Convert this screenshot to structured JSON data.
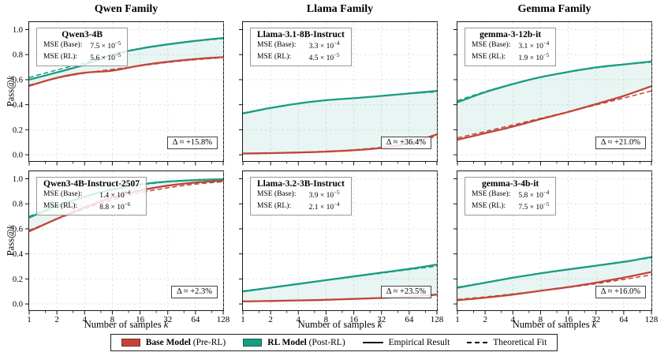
{
  "colors": {
    "base": "#c0453a",
    "rl": "#199c82",
    "fill": "rgba(25,156,131,0.10)",
    "grid": "#d8e4e0"
  },
  "chart_data": {
    "type": "line",
    "xscale": "log2",
    "x": [
      1,
      2,
      4,
      8,
      16,
      32,
      64,
      128
    ],
    "minor_xticks": [
      1.5,
      3,
      6,
      12,
      24,
      48,
      96
    ],
    "xtick_labels": [
      "1",
      "2",
      "4",
      "8",
      "16",
      "32",
      "64",
      "128"
    ],
    "ytick_labels": [
      "0.0",
      "0.2",
      "0.4",
      "0.6",
      "0.8",
      "1.0"
    ],
    "ylim": [
      -0.05,
      1.06
    ],
    "xlabel_main": "Number of samples ",
    "xlabel_var": "k",
    "ylabel_main": "Pass@",
    "ylabel_var": "k",
    "column_titles": [
      "Qwen Family",
      "Llama Family",
      "Gemma Family"
    ],
    "panels": [
      {
        "family": "Qwen Family",
        "model": "Qwen3-4B",
        "mse_base_label": "MSE (Base):",
        "mse_base_mant": "7.5 × 10",
        "mse_base_exp": "−5",
        "mse_rl_label": "MSE (RL):",
        "mse_rl_mant": "5.6 × 10",
        "mse_rl_exp": "−5",
        "delta": "Δ ≈ +15.8%",
        "series": {
          "base_empirical": [
            0.55,
            0.615,
            0.655,
            0.672,
            0.713,
            0.743,
            0.765,
            0.78
          ],
          "base_theoretical": [
            0.556,
            0.612,
            0.652,
            0.682,
            0.71,
            0.738,
            0.76,
            0.776
          ],
          "rl_empirical": [
            0.6,
            0.658,
            0.72,
            0.8,
            0.848,
            0.882,
            0.91,
            0.933
          ],
          "rl_theoretical": [
            0.618,
            0.678,
            0.735,
            0.798,
            0.845,
            0.88,
            0.908,
            0.928
          ]
        }
      },
      {
        "family": "Llama Family",
        "model": "Llama-3.1-8B-Instruct",
        "mse_base_label": "MSE (Base):",
        "mse_base_mant": "3.3 × 10",
        "mse_base_exp": "−4",
        "mse_rl_label": "MSE (RL):",
        "mse_rl_mant": "4.5 × 10",
        "mse_rl_exp": "−5",
        "delta": "Δ ≈ +36.4%",
        "series": {
          "base_empirical": [
            0.01,
            0.013,
            0.018,
            0.025,
            0.036,
            0.055,
            0.092,
            0.163
          ],
          "base_theoretical": [
            0.01,
            0.014,
            0.02,
            0.028,
            0.04,
            0.06,
            0.095,
            0.148
          ],
          "rl_empirical": [
            0.33,
            0.374,
            0.41,
            0.436,
            0.452,
            0.47,
            0.49,
            0.51
          ],
          "rl_theoretical": [
            0.334,
            0.376,
            0.41,
            0.434,
            0.452,
            0.47,
            0.488,
            0.503
          ]
        }
      },
      {
        "family": "Gemma Family",
        "model": "gemma-3-12b-it",
        "mse_base_label": "MSE (Base):",
        "mse_base_mant": "3.1 × 10",
        "mse_base_exp": "−4",
        "mse_rl_label": "MSE (RL):",
        "mse_rl_mant": "1.9 × 10",
        "mse_rl_exp": "−5",
        "delta": "Δ ≈ +21.0%",
        "series": {
          "base_empirical": [
            0.12,
            0.172,
            0.225,
            0.285,
            0.342,
            0.405,
            0.47,
            0.548
          ],
          "base_theoretical": [
            0.135,
            0.186,
            0.238,
            0.291,
            0.344,
            0.398,
            0.453,
            0.51
          ],
          "rl_empirical": [
            0.42,
            0.5,
            0.565,
            0.62,
            0.662,
            0.698,
            0.722,
            0.745
          ],
          "rl_theoretical": [
            0.432,
            0.505,
            0.567,
            0.619,
            0.66,
            0.694,
            0.72,
            0.74
          ]
        }
      },
      {
        "family": "Qwen Family",
        "model": "Qwen3-4B-Instruct-2507",
        "mse_base_label": "MSE (Base):",
        "mse_base_mant": "1.4 × 10",
        "mse_base_exp": "−4",
        "mse_rl_label": "MSE (RL):",
        "mse_rl_mant": "8.8 × 10",
        "mse_rl_exp": "−6",
        "delta": "Δ ≈ +2.3%",
        "series": {
          "base_empirical": [
            0.58,
            0.68,
            0.772,
            0.85,
            0.906,
            0.945,
            0.97,
            0.985
          ],
          "base_theoretical": [
            0.588,
            0.678,
            0.76,
            0.832,
            0.888,
            0.928,
            0.957,
            0.977
          ],
          "rl_empirical": [
            0.69,
            0.782,
            0.856,
            0.915,
            0.955,
            0.978,
            0.99,
            0.997
          ],
          "rl_theoretical": [
            0.7,
            0.786,
            0.857,
            0.912,
            0.95,
            0.975,
            0.988,
            0.995
          ]
        }
      },
      {
        "family": "Llama Family",
        "model": "Llama-3.2-3B-Instruct",
        "mse_base_label": "MSE (Base):",
        "mse_base_mant": "3.9 × 10",
        "mse_base_exp": "−5",
        "mse_rl_label": "MSE (RL):",
        "mse_rl_mant": "2.1 × 10",
        "mse_rl_exp": "−4",
        "delta": "Δ ≈ +23.5%",
        "series": {
          "base_empirical": [
            0.02,
            0.024,
            0.028,
            0.033,
            0.04,
            0.048,
            0.058,
            0.075
          ],
          "base_theoretical": [
            0.021,
            0.025,
            0.03,
            0.035,
            0.042,
            0.05,
            0.06,
            0.072
          ],
          "rl_empirical": [
            0.1,
            0.13,
            0.16,
            0.19,
            0.22,
            0.25,
            0.28,
            0.315
          ],
          "rl_theoretical": [
            0.104,
            0.132,
            0.161,
            0.19,
            0.218,
            0.246,
            0.275,
            0.302
          ]
        }
      },
      {
        "family": "Gemma Family",
        "model": "gemma-3-4b-it",
        "mse_base_label": "MSE (Base):",
        "mse_base_mant": "5.8 × 10",
        "mse_base_exp": "−4",
        "mse_rl_label": "MSE (RL):",
        "mse_rl_mant": "7.5 × 10",
        "mse_rl_exp": "−5",
        "delta": "Δ ≈ +16.0%",
        "series": {
          "base_empirical": [
            0.03,
            0.05,
            0.075,
            0.105,
            0.135,
            0.17,
            0.21,
            0.255
          ],
          "base_theoretical": [
            0.036,
            0.056,
            0.08,
            0.105,
            0.132,
            0.162,
            0.196,
            0.232
          ],
          "rl_empirical": [
            0.13,
            0.17,
            0.21,
            0.245,
            0.276,
            0.306,
            0.336,
            0.375
          ],
          "rl_theoretical": [
            0.134,
            0.172,
            0.21,
            0.245,
            0.277,
            0.308,
            0.34,
            0.368
          ]
        }
      }
    ],
    "legend": {
      "items": [
        {
          "bold": "Base Model",
          "normal": " (Pre-RL)"
        },
        {
          "bold": "RL Model",
          "normal": " (Post-RL)"
        },
        {
          "label": "Empirical Result"
        },
        {
          "label": "Theoretical Fit"
        }
      ]
    }
  }
}
